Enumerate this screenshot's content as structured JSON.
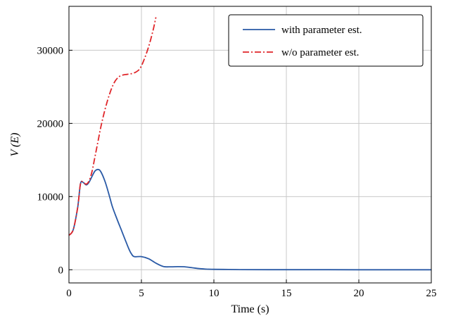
{
  "chart_data": {
    "type": "line",
    "title": "",
    "xlabel": "Time (s)",
    "ylabel": "V (E)",
    "xlim": [
      0,
      25
    ],
    "ylim": [
      -1800,
      36000
    ],
    "xticks": [
      0,
      5,
      10,
      15,
      20,
      25
    ],
    "yticks": [
      0,
      10000,
      20000,
      30000
    ],
    "xtick_labels": [
      "0",
      "5",
      "10",
      "15",
      "20",
      "25"
    ],
    "ytick_labels": [
      "0",
      "10000",
      "20000",
      "30000"
    ],
    "grid": true,
    "legend_position": "top-right",
    "series": [
      {
        "name": "with parameter est.",
        "color": "#2a5aa6",
        "style": "solid",
        "x": [
          0,
          0.3,
          0.6,
          0.8,
          1.0,
          1.2,
          1.4,
          1.6,
          1.8,
          2.0,
          2.2,
          2.5,
          2.8,
          3.0,
          3.3,
          3.6,
          3.9,
          4.1,
          4.3,
          4.5,
          5.0,
          5.5,
          6.0,
          6.5,
          7.0,
          7.5,
          8.0,
          8.5,
          9.0,
          9.5,
          10.0,
          11.0,
          12.0,
          14.0,
          17.0,
          20.0,
          25.0
        ],
        "y": [
          4700,
          5500,
          8500,
          11800,
          11900,
          11600,
          12000,
          12800,
          13500,
          13700,
          13400,
          12000,
          10000,
          8600,
          7000,
          5500,
          4000,
          3000,
          2200,
          1800,
          1800,
          1500,
          900,
          450,
          400,
          420,
          400,
          280,
          150,
          90,
          60,
          40,
          20,
          10,
          5,
          3,
          0
        ]
      },
      {
        "name": "w/o parameter est.",
        "color": "#e0262a",
        "style": "dashdot",
        "x": [
          0,
          0.3,
          0.6,
          0.8,
          1.0,
          1.2,
          1.4,
          1.6,
          1.8,
          2.0,
          2.2,
          2.5,
          2.8,
          3.1,
          3.4,
          3.7,
          4.0,
          4.3,
          4.6,
          4.9,
          5.2,
          5.5,
          5.8,
          6.0
        ],
        "y": [
          4700,
          5500,
          8500,
          11800,
          11900,
          11700,
          12200,
          13500,
          15500,
          17500,
          19500,
          22000,
          24000,
          25500,
          26300,
          26600,
          26700,
          26800,
          27000,
          27500,
          28800,
          30500,
          32700,
          34500
        ]
      }
    ]
  }
}
